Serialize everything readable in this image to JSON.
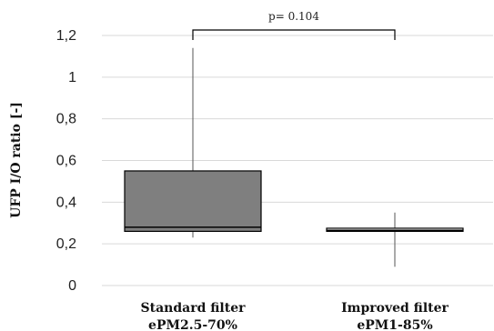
{
  "chart_data": {
    "type": "box",
    "title": "",
    "ylabel": "UFP I/O ratio [-]",
    "ylim": [
      0,
      1.2
    ],
    "yticks": [
      {
        "value": 0,
        "label": "0"
      },
      {
        "value": 0.2,
        "label": "0,2"
      },
      {
        "value": 0.4,
        "label": "0,4"
      },
      {
        "value": 0.6,
        "label": "0,6"
      },
      {
        "value": 0.8,
        "label": "0,8"
      },
      {
        "value": 1.0,
        "label": "1"
      },
      {
        "value": 1.2,
        "label": "1,2"
      }
    ],
    "grid": true,
    "categories": [
      {
        "line1": "Standard filter",
        "line2": "ePM2.5-70%"
      },
      {
        "line1": "Improved filter",
        "line2": "ePM1-85%"
      }
    ],
    "boxes": [
      {
        "min": 0.23,
        "q1": 0.26,
        "median": 0.28,
        "q3": 0.55,
        "max": 1.14,
        "color": "#7f7f7f"
      },
      {
        "min": 0.09,
        "q1": 0.26,
        "median": 0.265,
        "q3": 0.275,
        "max": 0.35,
        "color": "#ffffff"
      }
    ],
    "annotation": {
      "text": "p= 0.104",
      "bracket_y": 1.18
    }
  }
}
